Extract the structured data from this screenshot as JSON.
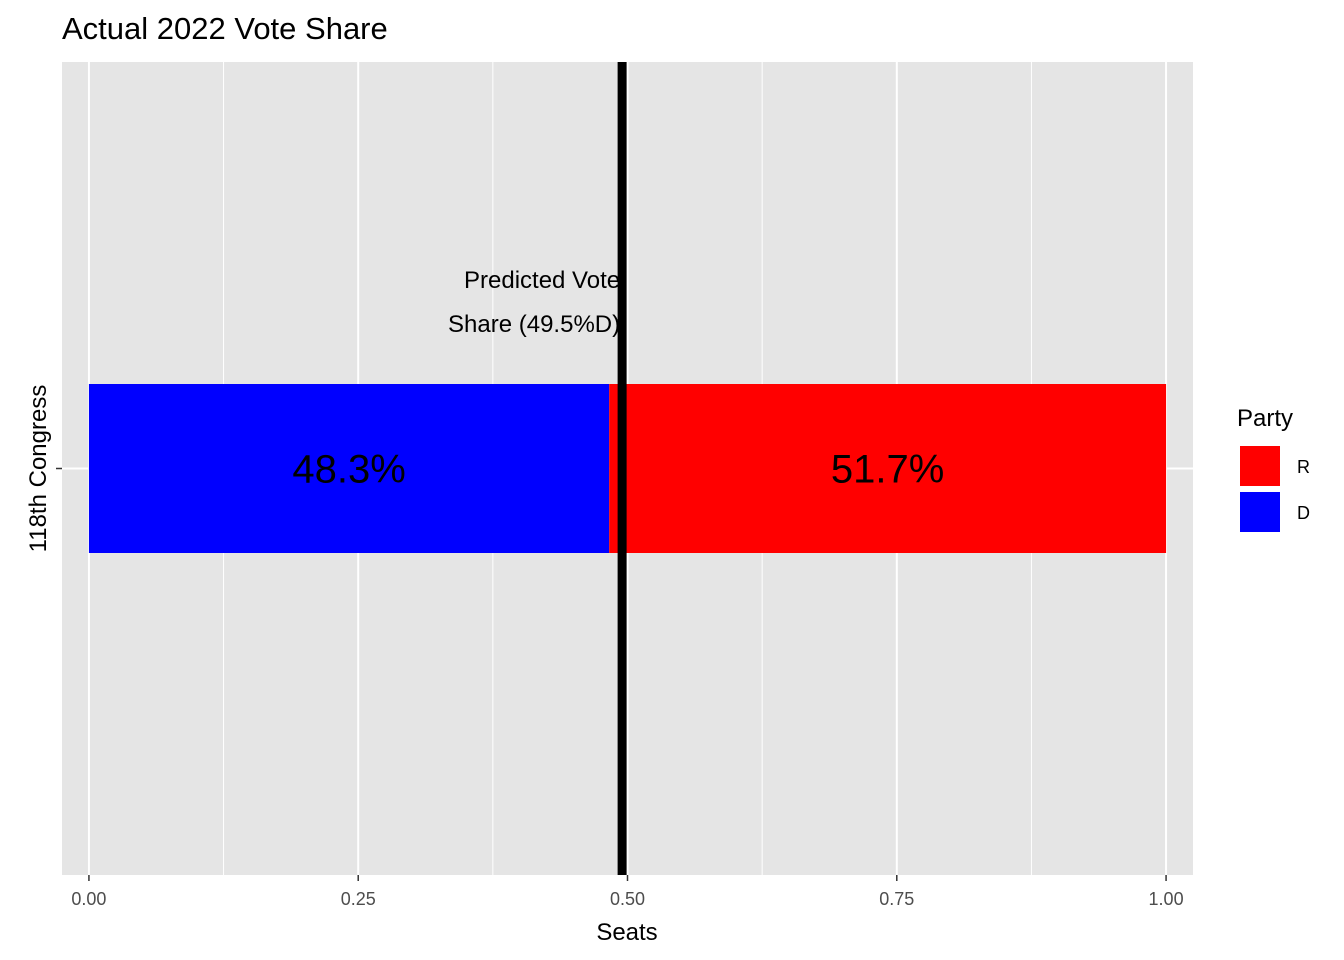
{
  "chart_data": {
    "type": "bar",
    "orientation": "horizontal",
    "stacked": true,
    "title": "Actual 2022 Vote Share",
    "xlabel": "Seats",
    "ylabel": "",
    "xlim": [
      -0.025,
      1.025
    ],
    "x_ticks": [
      0,
      0.25,
      0.5,
      0.75,
      1.0
    ],
    "x_tick_labels": [
      "0.00",
      "0.25",
      "0.50",
      "0.75",
      "1.00"
    ],
    "categories": [
      "118th Congress"
    ],
    "series": [
      {
        "name": "D",
        "values": [
          0.483
        ],
        "label": "48.3%",
        "color": "#0000ff"
      },
      {
        "name": "R",
        "values": [
          0.517
        ],
        "label": "51.7%",
        "color": "#ff0000"
      }
    ],
    "reference_line": {
      "x": 0.495,
      "orientation": "vertical",
      "color": "#000000",
      "annotation": [
        "Predicted Vote",
        "Share (49.5%D)"
      ]
    },
    "legend": {
      "title": "Party",
      "position": "right",
      "entries": [
        {
          "label": "R",
          "color": "#ff0000"
        },
        {
          "label": "D",
          "color": "#0000ff"
        }
      ]
    },
    "grid": true,
    "panel_background": "#e5e5e5"
  }
}
